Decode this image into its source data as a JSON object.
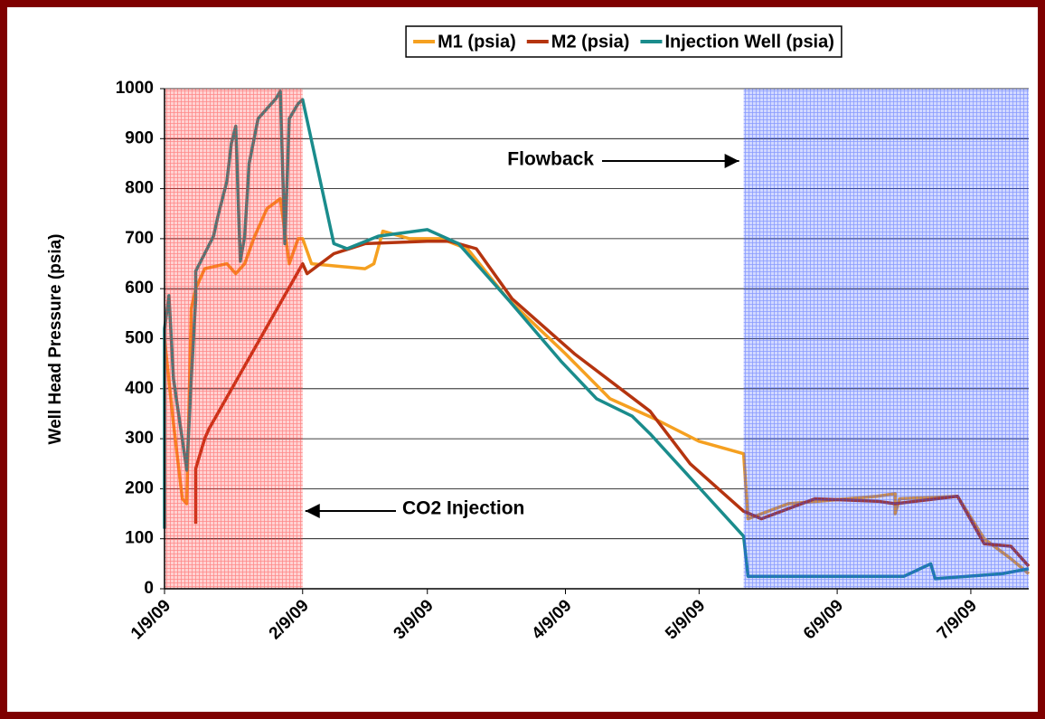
{
  "chart_data": {
    "type": "line",
    "y_axis_label": "Well Head Pressure (psia)",
    "ylim": [
      0,
      1000
    ],
    "yticks": [
      0,
      100,
      200,
      300,
      400,
      500,
      600,
      700,
      800,
      900,
      1000
    ],
    "xlim": [
      "2009-01-09",
      "2009-07-22"
    ],
    "xticks": [
      {
        "value": "2009-01-09",
        "label": "1/9/09"
      },
      {
        "value": "2009-02-09",
        "label": "2/9/09"
      },
      {
        "value": "2009-03-09",
        "label": "3/9/09"
      },
      {
        "value": "2009-04-09",
        "label": "4/9/09"
      },
      {
        "value": "2009-05-09",
        "label": "5/9/09"
      },
      {
        "value": "2009-06-09",
        "label": "6/9/09"
      },
      {
        "value": "2009-07-09",
        "label": "7/9/09"
      }
    ],
    "grid": true,
    "legend": "top",
    "shaded_regions": [
      {
        "start": "2009-01-09",
        "end": "2009-02-09",
        "color": "#ff3030"
      },
      {
        "start": "2009-05-19",
        "end": "2009-07-22",
        "color": "#3050ff"
      }
    ],
    "annotations": [
      "CO2 Injection",
      "Flowback"
    ],
    "series": [
      {
        "name": "M1 (psia)",
        "color": "#f5a020",
        "x": [
          "2009-01-09",
          "2009-01-11",
          "2009-01-13",
          "2009-01-14",
          "2009-01-15",
          "2009-01-16",
          "2009-01-18",
          "2009-01-23",
          "2009-01-25",
          "2009-01-27",
          "2009-01-29",
          "2009-02-01",
          "2009-02-04",
          "2009-02-06",
          "2009-02-08",
          "2009-02-09",
          "2009-02-11",
          "2009-02-23",
          "2009-02-25",
          "2009-02-27",
          "2009-03-05",
          "2009-03-12",
          "2009-03-18",
          "2009-03-27",
          "2009-04-09",
          "2009-04-19",
          "2009-04-29",
          "2009-05-09",
          "2009-05-19",
          "2009-05-20",
          "2009-05-29",
          "2009-06-18",
          "2009-06-22",
          "2009-06-22",
          "2009-06-23",
          "2009-07-06",
          "2009-07-12",
          "2009-07-18",
          "2009-07-22"
        ],
        "values": [
          500,
          330,
          180,
          170,
          560,
          600,
          640,
          650,
          630,
          650,
          700,
          760,
          780,
          650,
          700,
          700,
          650,
          640,
          650,
          715,
          700,
          700,
          680,
          580,
          470,
          380,
          340,
          295,
          270,
          140,
          170,
          185,
          190,
          150,
          180,
          185,
          100,
          60,
          30
        ]
      },
      {
        "name": "M2 (psia)",
        "color": "#b5340f",
        "x": [
          "2009-01-16",
          "2009-01-16",
          "2009-01-18",
          "2009-01-19",
          "2009-02-09",
          "2009-02-10",
          "2009-02-16",
          "2009-02-23",
          "2009-03-09",
          "2009-03-14",
          "2009-03-20",
          "2009-03-28",
          "2009-04-11",
          "2009-04-28",
          "2009-05-07",
          "2009-05-19",
          "2009-05-23",
          "2009-06-04",
          "2009-06-18",
          "2009-06-22",
          "2009-07-06",
          "2009-07-12",
          "2009-07-18",
          "2009-07-22"
        ],
        "values": [
          130,
          240,
          300,
          320,
          650,
          630,
          670,
          690,
          695,
          695,
          680,
          580,
          470,
          355,
          250,
          155,
          140,
          180,
          175,
          170,
          185,
          90,
          85,
          45
        ]
      },
      {
        "name": "Injection Well (psia)",
        "color": "#1a8c8c",
        "x": [
          "2009-01-09",
          "2009-01-09",
          "2009-01-10",
          "2009-01-11",
          "2009-01-14",
          "2009-01-15",
          "2009-01-16",
          "2009-01-16",
          "2009-01-18",
          "2009-01-20",
          "2009-01-21",
          "2009-01-23",
          "2009-01-24",
          "2009-01-25",
          "2009-01-26",
          "2009-01-27",
          "2009-01-28",
          "2009-01-30",
          "2009-02-01",
          "2009-02-03",
          "2009-02-04",
          "2009-02-05",
          "2009-02-06",
          "2009-02-08",
          "2009-02-09",
          "2009-02-16",
          "2009-02-19",
          "2009-02-26",
          "2009-03-09",
          "2009-03-16",
          "2009-03-27",
          "2009-04-08",
          "2009-04-16",
          "2009-04-24",
          "2009-04-28",
          "2009-05-19",
          "2009-05-20",
          "2009-06-24",
          "2009-06-30",
          "2009-07-01",
          "2009-07-16",
          "2009-07-22"
        ],
        "values": [
          120,
          520,
          586,
          420,
          237,
          420,
          580,
          635,
          670,
          705,
          745,
          815,
          890,
          925,
          655,
          705,
          850,
          940,
          960,
          980,
          995,
          690,
          940,
          970,
          978,
          690,
          680,
          705,
          718,
          690,
          580,
          455,
          380,
          345,
          310,
          105,
          25,
          25,
          50,
          20,
          30,
          40
        ]
      }
    ]
  }
}
